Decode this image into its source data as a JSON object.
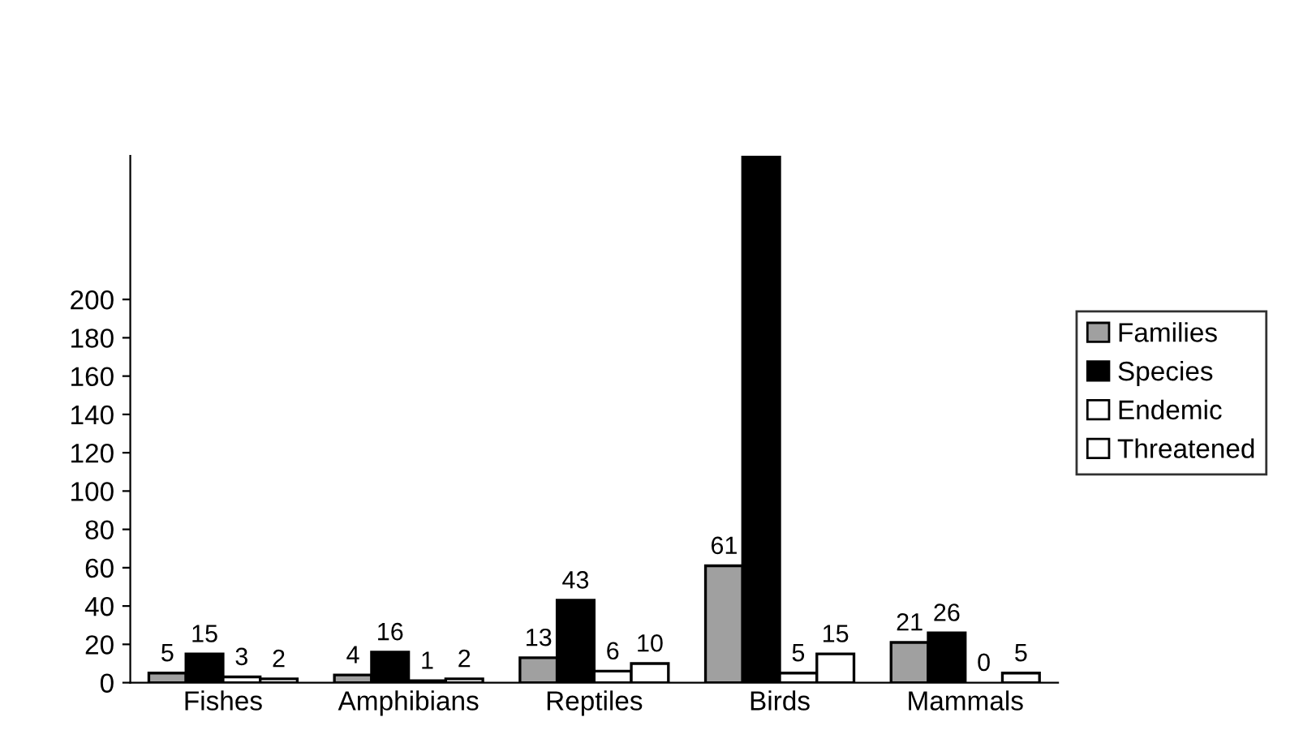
{
  "chart_data": {
    "type": "bar",
    "categories": [
      "Fishes",
      "Amphibians",
      "Reptiles",
      "Birds",
      "Mammals"
    ],
    "series": [
      {
        "name": "Families",
        "color": "#a0a0a0",
        "values": [
          5,
          4,
          13,
          61,
          21
        ],
        "value_labels": [
          "5",
          "4",
          "13",
          "61",
          "21"
        ]
      },
      {
        "name": "Species",
        "color": "#000000",
        "values": [
          15,
          16,
          43,
          275,
          26
        ],
        "value_labels": [
          "15",
          "16",
          "43",
          null,
          "26"
        ]
      },
      {
        "name": "Endemic",
        "color": "#ffffff",
        "values": [
          3,
          1,
          6,
          5,
          0
        ],
        "value_labels": [
          "3",
          "1",
          "6",
          "5",
          "0"
        ]
      },
      {
        "name": "Threatened",
        "color": "#ffffff",
        "values": [
          2,
          2,
          10,
          15,
          5
        ],
        "value_labels": [
          "2",
          "2",
          "10",
          "15",
          "5"
        ]
      }
    ],
    "ylim": [
      0,
      275
    ],
    "yticks": [
      0,
      20,
      40,
      60,
      80,
      100,
      120,
      140,
      160,
      180,
      200
    ],
    "grid": false,
    "legend": "right"
  }
}
